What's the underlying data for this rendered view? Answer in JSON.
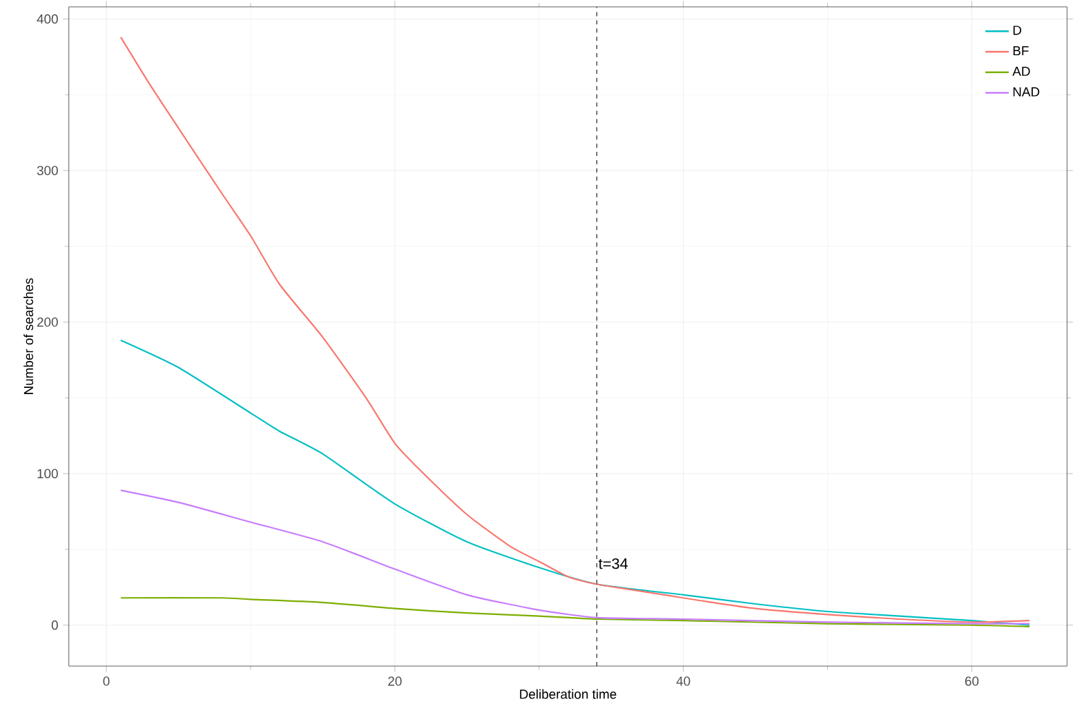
{
  "chart_data": {
    "type": "line",
    "xlabel": "Deliberation time",
    "ylabel": "Number of searches",
    "xlim": [
      -2.6,
      66.6
    ],
    "ylim": [
      -27,
      408
    ],
    "xticks": [
      0,
      20,
      40,
      60
    ],
    "yticks": [
      0,
      100,
      200,
      300,
      400
    ],
    "grid": true,
    "legend": "top right",
    "marker": "none",
    "line_style": "solid",
    "series": [
      {
        "name": "D",
        "color": "#00bfc4",
        "x": [
          1,
          5,
          10,
          12,
          15,
          20,
          25,
          30,
          34,
          40,
          45,
          50,
          55,
          60,
          64
        ],
        "values": [
          188,
          170,
          140,
          128,
          113,
          80,
          55,
          38,
          27,
          20,
          14,
          9,
          6,
          3,
          0
        ]
      },
      {
        "name": "BF",
        "color": "#f8766d",
        "x": [
          1,
          3,
          5,
          8,
          10,
          12,
          15,
          18,
          20,
          22,
          25,
          28,
          30,
          32,
          34,
          36,
          38,
          40,
          42,
          45,
          50,
          55,
          60,
          64
        ],
        "values": [
          388,
          357,
          328,
          285,
          257,
          225,
          190,
          150,
          120,
          100,
          73,
          52,
          42,
          32,
          27,
          24,
          21,
          18,
          15,
          11,
          7,
          4,
          2,
          3
        ]
      },
      {
        "name": "AD",
        "color": "#7cae00",
        "x": [
          1,
          8,
          10,
          15,
          20,
          25,
          30,
          34,
          40,
          50,
          60,
          64
        ],
        "values": [
          18,
          18,
          17,
          15,
          11,
          8,
          6,
          4,
          3,
          1,
          0,
          -1
        ]
      },
      {
        "name": "NAD",
        "color": "#c77cff",
        "x": [
          1,
          5,
          10,
          15,
          20,
          25,
          30,
          34,
          40,
          50,
          60,
          64
        ],
        "values": [
          89,
          81,
          68,
          55,
          37,
          20,
          10,
          5,
          4,
          2,
          1,
          1
        ]
      }
    ],
    "ref_lines": [
      {
        "axis": "x",
        "value": 34,
        "line_style": "dashed",
        "color": "#333333"
      }
    ],
    "annotations": [
      {
        "text": "t=34",
        "x": 34,
        "y": 36
      }
    ]
  }
}
